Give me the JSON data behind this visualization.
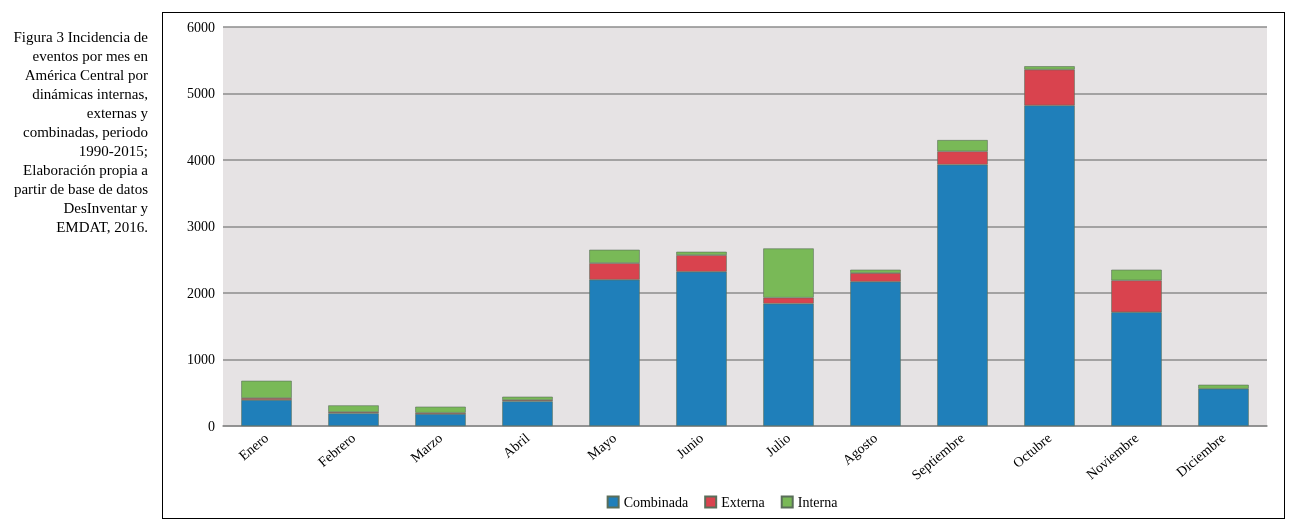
{
  "chart_data": {
    "type": "bar",
    "title": "Figura 3 Incidencia de eventos por mes en América Central por dinámicas internas, externas y combinadas, periodo 1990-2015; Elaboración propia a partir de base de datos DesInventar y EMDAT, 2016.",
    "categories": [
      "Enero",
      "Febrero",
      "Marzo",
      "Abril",
      "Mayo",
      "Junio",
      "Julio",
      "Agosto",
      "Septiembre",
      "Octubre",
      "Noviembre",
      "Diciembre"
    ],
    "stacked": true,
    "series": [
      {
        "name": "Combinada",
        "color": "#1f7fba",
        "values": [
          390,
          190,
          180,
          370,
          2200,
          2320,
          1840,
          2170,
          3930,
          4820,
          1710,
          560
        ]
      },
      {
        "name": "Externa",
        "color": "#d9434e",
        "values": [
          30,
          20,
          20,
          20,
          250,
          250,
          90,
          130,
          200,
          540,
          480,
          null
        ]
      },
      {
        "name": "Interna",
        "color": "#79b957",
        "values": [
          260,
          100,
          90,
          50,
          200,
          50,
          740,
          50,
          170,
          50,
          160,
          60
        ]
      }
    ],
    "ylim": [
      0,
      6000
    ],
    "yticks": [
      0,
      1000,
      2000,
      3000,
      4000,
      5000,
      6000
    ],
    "grid": "y",
    "legend": "bottom"
  }
}
